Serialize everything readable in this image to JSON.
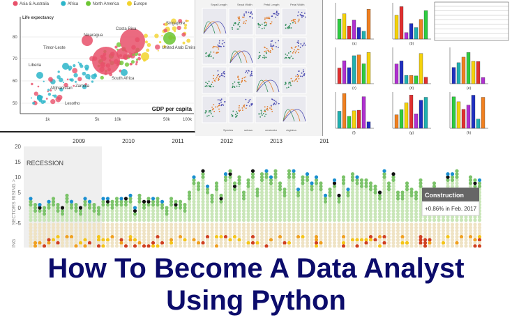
{
  "bubble_chart": {
    "legend": [
      {
        "label": "Asia & Australia",
        "color": "#e8506a"
      },
      {
        "label": "Africa",
        "color": "#2bb5c9"
      },
      {
        "label": "North America",
        "color": "#6bc531"
      },
      {
        "label": "Europe",
        "color": "#f2d32c"
      }
    ],
    "y_label": "Life expectancy",
    "x_label": "GDP per capita",
    "y_ticks": [
      "80",
      "70",
      "60",
      "50"
    ],
    "x_ticks": [
      "1k",
      "5k",
      "10k",
      "50k",
      "100k"
    ],
    "annotations": [
      "Singapore",
      "Costa Rica",
      "Nicaragua",
      "Timor-Leste",
      "Liberia",
      "Afghanistan",
      "Zambia",
      "Lesotho",
      "South Africa",
      "United Arab Emirates"
    ]
  },
  "pair_plot": {
    "column_headers": [
      "Sepal Length",
      "Sepal Width",
      "Petal Length",
      "Petal Width"
    ],
    "legend": [
      "Species",
      "setosa",
      "versicolor",
      "virginica"
    ]
  },
  "histograms": {
    "panel_labels": [
      "(a)",
      "(b)",
      "(c)",
      "(d)",
      "(e)",
      "(f)",
      "(g)",
      "(h)"
    ]
  },
  "dot_chart": {
    "years": [
      "2009",
      "2010",
      "2011",
      "2012",
      "2013",
      "201"
    ],
    "y_ticks": [
      "20",
      "15",
      "10",
      "5",
      "0",
      "-5"
    ],
    "y_label": "SECTORS RISING >",
    "y_label_lower": "ING",
    "recession_label": "RECESSION",
    "tooltip": {
      "title": "Construction",
      "value": "+0.86% in Feb. 2017"
    }
  },
  "title": {
    "line1": "How To Become A Data Analyst",
    "line2": "Using Python"
  }
}
